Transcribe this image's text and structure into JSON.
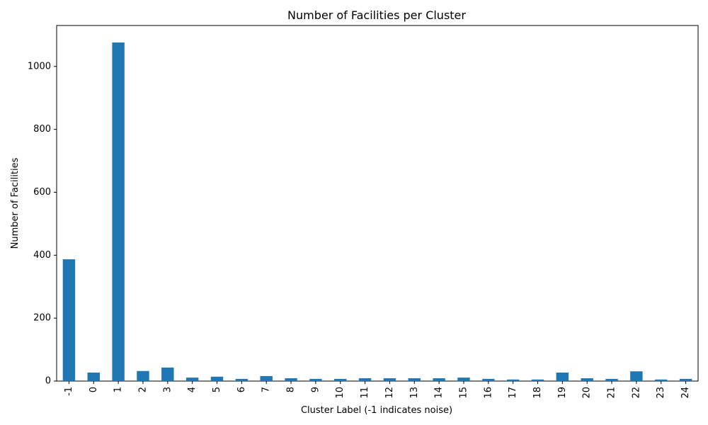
{
  "chart_data": {
    "type": "bar",
    "title": "Number of Facilities per Cluster",
    "xlabel": "Cluster Label (-1 indicates noise)",
    "ylabel": "Number of Facilities",
    "categories": [
      "-1",
      "0",
      "1",
      "2",
      "3",
      "4",
      "5",
      "6",
      "7",
      "8",
      "9",
      "10",
      "11",
      "12",
      "13",
      "14",
      "15",
      "16",
      "17",
      "18",
      "19",
      "20",
      "21",
      "22",
      "23",
      "24"
    ],
    "values": [
      387,
      27,
      1076,
      32,
      43,
      11,
      14,
      7,
      16,
      9,
      7,
      7,
      9,
      9,
      9,
      9,
      11,
      7,
      5,
      5,
      27,
      9,
      7,
      31,
      5,
      7
    ],
    "ylim": [
      0,
      1130
    ],
    "yticks": [
      0,
      200,
      400,
      600,
      800,
      1000
    ],
    "bar_color": "#1f77b4",
    "grid": false,
    "legend": "none"
  }
}
